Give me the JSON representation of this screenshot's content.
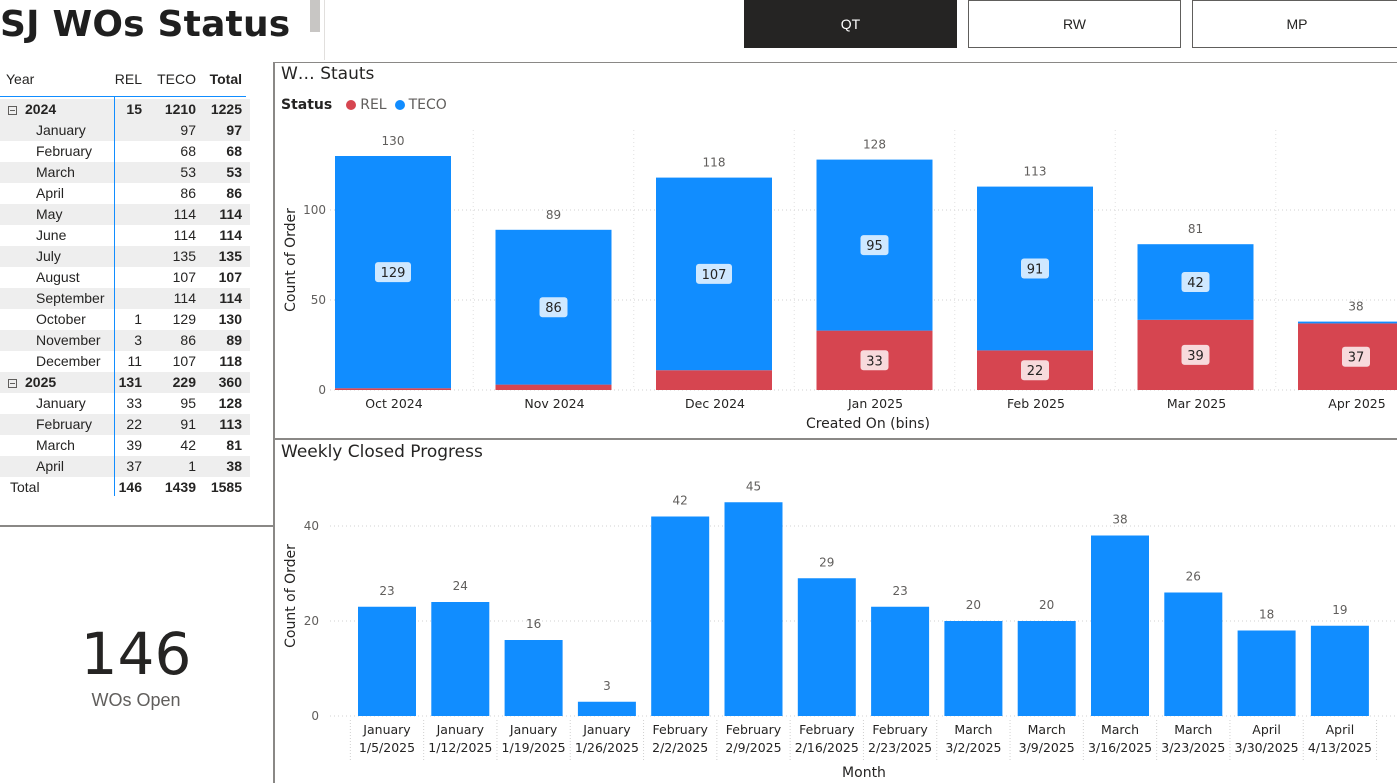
{
  "page": {
    "title": "SJ WOs Status"
  },
  "slicers": [
    {
      "label": "QT",
      "active": true
    },
    {
      "label": "RW",
      "active": false
    },
    {
      "label": "MP",
      "active": false
    }
  ],
  "matrix": {
    "headers": {
      "year": "Year",
      "rel": "REL",
      "teco": "TECO",
      "total": "Total"
    },
    "rows": [
      {
        "type": "year",
        "label": "2024",
        "rel": "15",
        "teco": "1210",
        "total": "1225"
      },
      {
        "type": "month",
        "label": "January",
        "rel": "",
        "teco": "97",
        "total": "97"
      },
      {
        "type": "month",
        "label": "February",
        "rel": "",
        "teco": "68",
        "total": "68"
      },
      {
        "type": "month",
        "label": "March",
        "rel": "",
        "teco": "53",
        "total": "53"
      },
      {
        "type": "month",
        "label": "April",
        "rel": "",
        "teco": "86",
        "total": "86"
      },
      {
        "type": "month",
        "label": "May",
        "rel": "",
        "teco": "114",
        "total": "114"
      },
      {
        "type": "month",
        "label": "June",
        "rel": "",
        "teco": "114",
        "total": "114"
      },
      {
        "type": "month",
        "label": "July",
        "rel": "",
        "teco": "135",
        "total": "135"
      },
      {
        "type": "month",
        "label": "August",
        "rel": "",
        "teco": "107",
        "total": "107"
      },
      {
        "type": "month",
        "label": "September",
        "rel": "",
        "teco": "114",
        "total": "114"
      },
      {
        "type": "month",
        "label": "October",
        "rel": "1",
        "teco": "129",
        "total": "130"
      },
      {
        "type": "month",
        "label": "November",
        "rel": "3",
        "teco": "86",
        "total": "89"
      },
      {
        "type": "month",
        "label": "December",
        "rel": "11",
        "teco": "107",
        "total": "118"
      },
      {
        "type": "year",
        "label": "2025",
        "rel": "131",
        "teco": "229",
        "total": "360"
      },
      {
        "type": "month",
        "label": "January",
        "rel": "33",
        "teco": "95",
        "total": "128"
      },
      {
        "type": "month",
        "label": "February",
        "rel": "22",
        "teco": "91",
        "total": "113"
      },
      {
        "type": "month",
        "label": "March",
        "rel": "39",
        "teco": "42",
        "total": "81"
      },
      {
        "type": "month",
        "label": "April",
        "rel": "37",
        "teco": "1",
        "total": "38"
      },
      {
        "type": "total",
        "label": "Total",
        "rel": "146",
        "teco": "1439",
        "total": "1585"
      }
    ]
  },
  "card": {
    "value": "146",
    "label": "WOs Open"
  },
  "colors": {
    "rel": "#d64550",
    "teco": "#118dff",
    "text": "#252423",
    "muted": "#605e5c"
  },
  "chart_data": [
    {
      "type": "bar",
      "stacked": true,
      "title": "W… Stauts",
      "legend_title": "Status",
      "legend_position": "top-left",
      "xlabel": "Created On (bins)",
      "ylabel": "Count of Order",
      "ylim": [
        0,
        145
      ],
      "yticks": [
        0,
        50,
        100
      ],
      "grid": true,
      "categories": [
        "Oct 2024",
        "Nov 2024",
        "Dec 2024",
        "Jan 2025",
        "Feb 2025",
        "Mar 2025",
        "Apr 2025"
      ],
      "series": [
        {
          "name": "REL",
          "color": "#d64550",
          "values": [
            1,
            3,
            11,
            33,
            22,
            39,
            37
          ],
          "labels": [
            "",
            "",
            "",
            "33",
            "22",
            "39",
            "37"
          ]
        },
        {
          "name": "TECO",
          "color": "#118dff",
          "values": [
            129,
            86,
            107,
            95,
            91,
            42,
            1
          ],
          "labels": [
            "129",
            "86",
            "107",
            "95",
            "91",
            "42",
            ""
          ]
        }
      ],
      "totals": [
        130,
        89,
        118,
        128,
        113,
        81,
        38
      ]
    },
    {
      "type": "bar",
      "title": "Weekly Closed Progress",
      "xlabel": "Month",
      "ylabel": "Count of Order",
      "ylim": [
        0,
        50
      ],
      "yticks": [
        0,
        20,
        40
      ],
      "grid": true,
      "categories": [
        {
          "month": "January",
          "week": "1/5/2025"
        },
        {
          "month": "January",
          "week": "1/12/2025"
        },
        {
          "month": "January",
          "week": "1/19/2025"
        },
        {
          "month": "January",
          "week": "1/26/2025"
        },
        {
          "month": "February",
          "week": "2/2/2025"
        },
        {
          "month": "February",
          "week": "2/9/2025"
        },
        {
          "month": "February",
          "week": "2/16/2025"
        },
        {
          "month": "February",
          "week": "2/23/2025"
        },
        {
          "month": "March",
          "week": "3/2/2025"
        },
        {
          "month": "March",
          "week": "3/9/2025"
        },
        {
          "month": "March",
          "week": "3/16/2025"
        },
        {
          "month": "March",
          "week": "3/23/2025"
        },
        {
          "month": "April",
          "week": "3/30/2025"
        },
        {
          "month": "April",
          "week": "4/13/2025"
        }
      ],
      "values": [
        23,
        24,
        16,
        3,
        42,
        45,
        29,
        23,
        20,
        20,
        38,
        26,
        18,
        19
      ],
      "color": "#118dff"
    }
  ]
}
